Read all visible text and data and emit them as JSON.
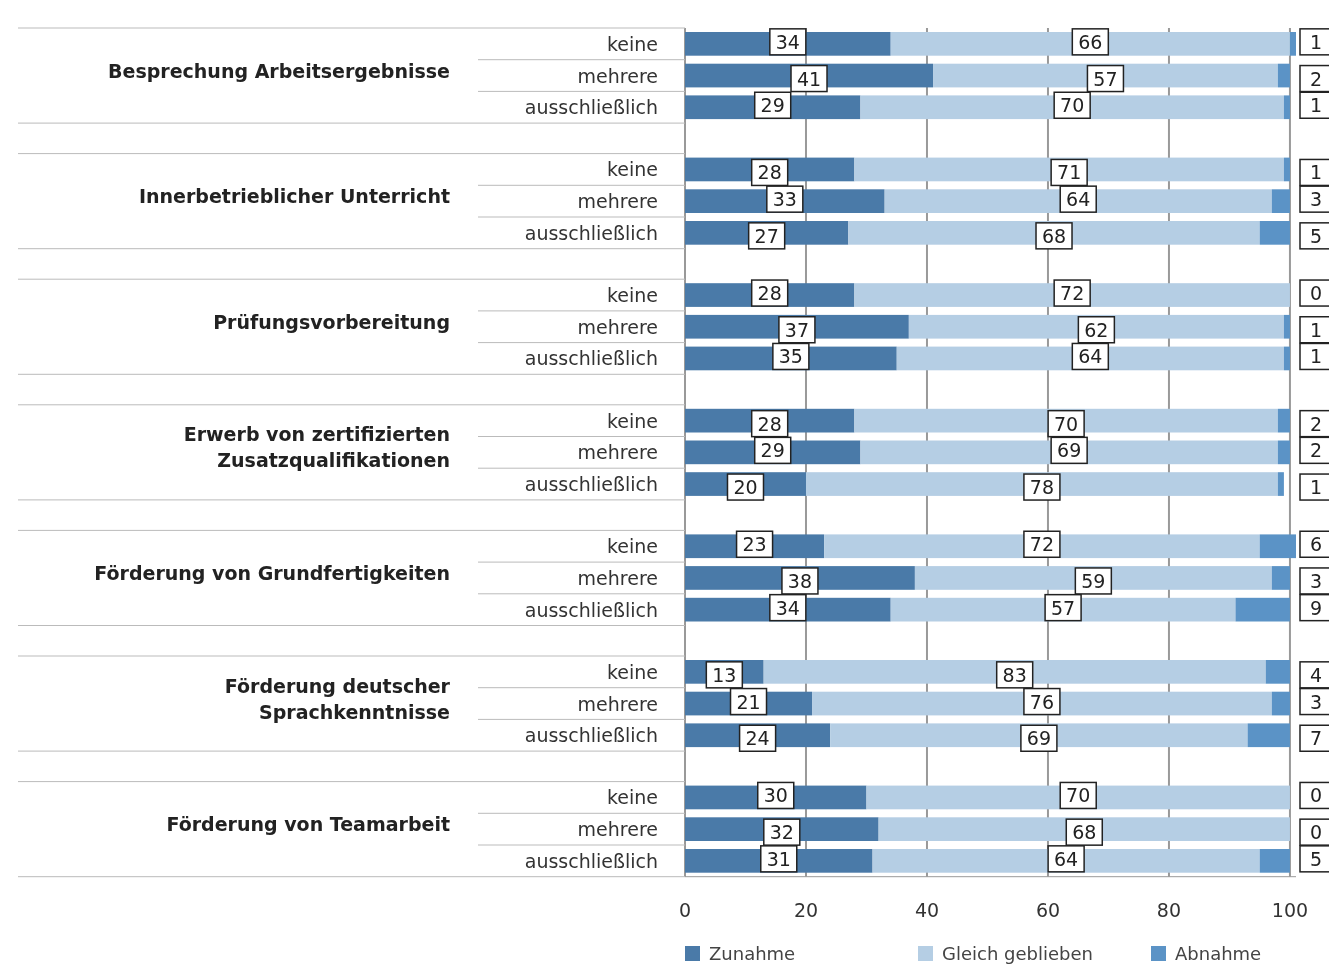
{
  "chart_data": {
    "type": "bar",
    "orientation": "horizontal",
    "stacked": true,
    "categories": [
      "keine",
      "mehrere",
      "ausschließlich",
      "keine",
      "mehrere",
      "ausschließlich",
      "keine",
      "mehrere",
      "ausschließlich",
      "keine",
      "mehrere",
      "ausschließlich",
      "keine",
      "mehrere",
      "ausschließlich",
      "keine",
      "mehrere",
      "ausschließlich",
      "keine",
      "mehrere",
      "ausschließlich"
    ],
    "annotations": [
      "Besprechung Arbeitsergebnisse",
      "Innerbetrieblicher Unterricht",
      "Prüfungsvorbereitung",
      "Erwerb von zertifizierten Zusatzqualifikationen",
      "Förderung von Grundfertigkeiten",
      "Förderung deutscher Sprachkenntnisse",
      "Förderung von Teamarbeit"
    ],
    "series": [
      {
        "name": "Zunahme",
        "color": "#4a7aa8",
        "values": [
          34,
          41,
          29,
          28,
          33,
          27,
          28,
          37,
          35,
          28,
          29,
          20,
          23,
          38,
          34,
          13,
          21,
          24,
          30,
          32,
          31
        ]
      },
      {
        "name": "Gleich geblieben",
        "color": "#b5cee4",
        "values": [
          66,
          57,
          70,
          71,
          64,
          68,
          72,
          62,
          64,
          70,
          69,
          78,
          72,
          59,
          57,
          83,
          76,
          69,
          70,
          68,
          64
        ]
      },
      {
        "name": "Abnahme",
        "color": "#5b93c6",
        "values": [
          1,
          2,
          1,
          1,
          3,
          5,
          0,
          1,
          1,
          2,
          2,
          1,
          6,
          3,
          9,
          4,
          3,
          7,
          0,
          0,
          5
        ]
      }
    ],
    "xlim": [
      0,
      101
    ],
    "xticks": [
      0,
      20,
      40,
      60,
      80,
      100
    ],
    "grid": "x",
    "legend": "bottom",
    "data_labels": true
  }
}
